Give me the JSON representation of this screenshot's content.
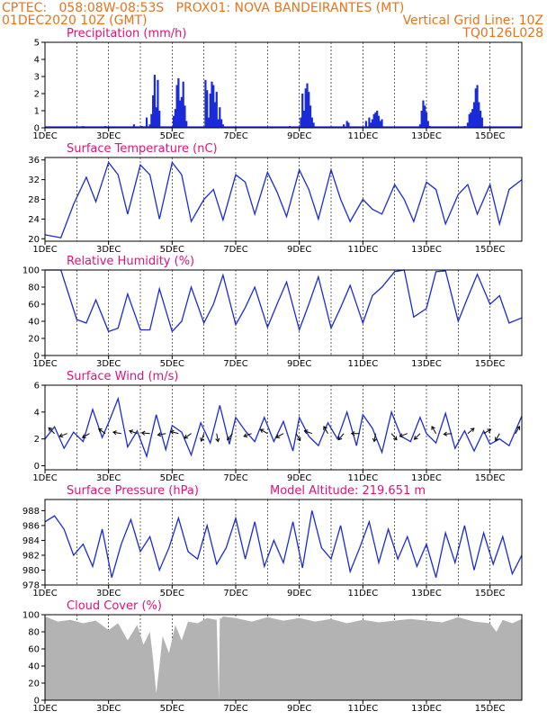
{
  "header": {
    "line1_left": "CPTEC:   058:08W-08:53S   PROX01: NOVA BANDEIRANTES (MT)",
    "line2_left": "01DEC2020 10Z (GMT)",
    "line2_right": "Vertical Grid Line: 10Z",
    "line3_right": "TQ0126L028"
  },
  "colors": {
    "header": "#e8731a",
    "title": "#e0127a",
    "series": "#1a2bd8",
    "cloud": "#b3b3b3",
    "axis": "#000000"
  },
  "x_ticks": [
    "1DEC",
    "3DEC",
    "5DEC",
    "7DEC",
    "9DEC",
    "11DEC",
    "13DEC",
    "15DEC"
  ],
  "x_range_days": [
    1,
    16
  ],
  "chart_data": [
    {
      "type": "bar",
      "title": "Precipitation (mm/h)",
      "ylim": [
        0,
        5
      ],
      "yticks": [
        0,
        1,
        2,
        3,
        4,
        5
      ],
      "x_day": [
        2.2,
        2.9,
        3.8,
        4.05,
        4.2,
        4.3,
        4.35,
        4.4,
        4.45,
        4.5,
        4.55,
        4.6,
        5.05,
        5.1,
        5.15,
        5.2,
        5.25,
        5.3,
        5.35,
        5.4,
        5.45,
        6.05,
        6.1,
        6.15,
        6.2,
        6.25,
        6.3,
        6.35,
        6.4,
        6.45,
        6.5,
        6.55,
        6.6,
        8.7,
        9.05,
        9.1,
        9.15,
        9.2,
        9.25,
        9.3,
        9.35,
        9.4,
        9.45,
        10.4,
        10.5,
        10.55,
        11.1,
        11.2,
        11.25,
        11.3,
        11.35,
        11.4,
        11.45,
        11.5,
        11.55,
        11.6,
        12.8,
        12.85,
        12.9,
        12.95,
        13.0,
        13.05,
        13.1,
        14.2,
        14.3,
        14.35,
        14.4,
        14.45,
        14.5,
        14.55,
        14.6,
        14.65,
        14.7,
        14.75
      ],
      "values": [
        0.1,
        0.1,
        0.2,
        0.1,
        0.6,
        0.2,
        0.8,
        1.9,
        3.1,
        1.2,
        2.8,
        1.0,
        0.7,
        1.1,
        2.5,
        2.9,
        1.6,
        1.8,
        2.7,
        1.3,
        0.4,
        2.8,
        2.2,
        0.6,
        2.0,
        2.7,
        2.5,
        1.5,
        2.1,
        0.5,
        1.2,
        0.5,
        0.2,
        0.1,
        0.6,
        2.0,
        1.0,
        2.3,
        2.6,
        2.1,
        1.3,
        0.6,
        0.3,
        0.2,
        0.4,
        0.3,
        0.4,
        0.6,
        0.3,
        0.5,
        0.8,
        0.9,
        1.0,
        0.7,
        0.4,
        0.5,
        0.2,
        1.0,
        1.6,
        1.3,
        0.9,
        0.4,
        0.1,
        0.1,
        0.3,
        0.8,
        0.9,
        1.1,
        1.5,
        2.3,
        2.5,
        1.5,
        1.0,
        0.6
      ]
    },
    {
      "type": "line",
      "title": "Surface Temperature (nC)",
      "ylim": [
        19.5,
        36.5
      ],
      "yticks": [
        20,
        24,
        28,
        32,
        36
      ],
      "x_day": [
        1.0,
        1.5,
        1.9,
        2.3,
        2.6,
        3.0,
        3.3,
        3.6,
        4.0,
        4.3,
        4.6,
        5.0,
        5.3,
        5.6,
        6.0,
        6.3,
        6.6,
        7.0,
        7.3,
        7.6,
        8.0,
        8.3,
        8.6,
        9.0,
        9.3,
        9.6,
        10.0,
        10.3,
        10.6,
        11.0,
        11.3,
        11.6,
        12.0,
        12.3,
        12.6,
        13.0,
        13.3,
        13.6,
        14.0,
        14.3,
        14.6,
        15.0,
        15.3,
        15.6,
        16.0
      ],
      "values": [
        20.8,
        20.2,
        27.0,
        32.5,
        27.5,
        35.5,
        33.0,
        25.0,
        35.0,
        33.0,
        24.0,
        35.5,
        33.0,
        23.5,
        28.0,
        30.0,
        23.8,
        33.0,
        31.5,
        25.0,
        33.5,
        29.5,
        24.5,
        34.0,
        30.0,
        24.0,
        34.0,
        28.0,
        23.5,
        28.0,
        26.0,
        25.0,
        31.0,
        28.0,
        23.5,
        31.5,
        30.0,
        23.0,
        29.0,
        31.0,
        25.0,
        31.0,
        23.0,
        30.0,
        32.0
      ]
    },
    {
      "type": "line",
      "title": "Relative Humidity (%)",
      "ylim": [
        0,
        100
      ],
      "yticks": [
        0,
        20,
        40,
        60,
        80,
        100
      ],
      "x_day": [
        1.0,
        1.5,
        2.0,
        2.3,
        2.6,
        3.0,
        3.3,
        3.6,
        4.0,
        4.3,
        4.6,
        5.0,
        5.3,
        5.6,
        6.0,
        6.3,
        6.6,
        7.0,
        7.3,
        7.6,
        8.0,
        8.3,
        8.6,
        9.0,
        9.3,
        9.6,
        10.0,
        10.3,
        10.6,
        11.0,
        11.3,
        11.6,
        12.0,
        12.3,
        12.6,
        13.0,
        13.3,
        13.6,
        14.0,
        14.3,
        14.6,
        15.0,
        15.3,
        15.6,
        16.0
      ],
      "values": [
        100,
        100,
        42,
        38,
        65,
        28,
        32,
        72,
        30,
        30,
        78,
        28,
        40,
        80,
        38,
        60,
        94,
        36,
        56,
        80,
        33,
        60,
        86,
        30,
        60,
        92,
        32,
        56,
        82,
        38,
        70,
        80,
        98,
        100,
        45,
        55,
        98,
        99,
        40,
        68,
        95,
        60,
        70,
        38,
        44
      ]
    },
    {
      "type": "line",
      "title": "Surface Wind (m/s)",
      "ylim": [
        -0.3,
        6
      ],
      "yticks": [
        0,
        2,
        4,
        6
      ],
      "x_day": [
        1.0,
        1.3,
        1.6,
        1.9,
        2.2,
        2.5,
        2.8,
        3.0,
        3.3,
        3.6,
        3.9,
        4.2,
        4.5,
        4.8,
        5.0,
        5.3,
        5.6,
        5.9,
        6.2,
        6.5,
        6.8,
        7.0,
        7.3,
        7.6,
        7.9,
        8.2,
        8.5,
        8.8,
        9.0,
        9.3,
        9.6,
        9.9,
        10.2,
        10.5,
        10.8,
        11.0,
        11.3,
        11.6,
        11.9,
        12.2,
        12.5,
        12.8,
        13.0,
        13.3,
        13.6,
        13.9,
        14.2,
        14.5,
        14.8,
        15.0,
        15.3,
        15.6,
        16.0
      ],
      "values": [
        2.0,
        2.9,
        1.3,
        2.5,
        1.8,
        4.2,
        2.1,
        3.2,
        5.0,
        1.4,
        2.6,
        0.7,
        3.8,
        1.2,
        3.0,
        2.5,
        0.8,
        3.2,
        1.7,
        4.5,
        1.6,
        3.6,
        2.6,
        1.8,
        3.6,
        1.8,
        3.3,
        1.1,
        3.6,
        2.2,
        1.5,
        3.2,
        2.0,
        4.0,
        1.5,
        3.8,
        2.8,
        1.0,
        4.0,
        2.2,
        1.8,
        3.6,
        2.4,
        1.7,
        3.9,
        1.3,
        2.6,
        1.1,
        2.6,
        1.6,
        2.0,
        1.5,
        3.7
      ],
      "arrows": {
        "x_day": [
          1.3,
          1.7,
          2.4,
          2.9,
          3.4,
          3.9,
          4.3,
          4.8,
          5.2,
          5.6,
          6.0,
          6.4,
          6.9,
          7.5,
          8.0,
          8.5,
          8.9,
          9.4,
          9.9,
          10.4,
          10.9,
          11.4,
          11.9,
          12.4,
          12.8,
          13.3,
          13.8,
          14.3,
          14.8,
          15.3,
          15.8
        ],
        "angle_deg": [
          135,
          200,
          210,
          145,
          170,
          160,
          175,
          190,
          165,
          215,
          250,
          280,
          230,
          200,
          150,
          210,
          300,
          160,
          120,
          230,
          180,
          260,
          310,
          200,
          225,
          120,
          185,
          40,
          30,
          240,
          60
        ]
      }
    },
    {
      "type": "line",
      "title": "Surface Pressure (hPa)",
      "annotation": "Model Altitude: 219.651 m",
      "ylim": [
        978,
        989.5
      ],
      "yticks": [
        978,
        980,
        982,
        984,
        986,
        988
      ],
      "x_day": [
        1.0,
        1.3,
        1.6,
        1.9,
        2.2,
        2.5,
        2.8,
        3.1,
        3.4,
        3.7,
        4.0,
        4.3,
        4.6,
        4.9,
        5.2,
        5.5,
        5.8,
        6.1,
        6.4,
        6.7,
        7.0,
        7.3,
        7.6,
        7.9,
        8.2,
        8.5,
        8.8,
        9.1,
        9.4,
        9.7,
        10.0,
        10.3,
        10.6,
        10.9,
        11.2,
        11.5,
        11.8,
        12.1,
        12.4,
        12.7,
        13.0,
        13.3,
        13.6,
        13.9,
        14.2,
        14.5,
        14.8,
        15.1,
        15.4,
        15.7,
        16.0
      ],
      "values": [
        986.5,
        987.3,
        985.5,
        982.0,
        983.5,
        980.5,
        985.5,
        979.0,
        983.5,
        986.8,
        982.5,
        984.5,
        980.0,
        983.0,
        987.0,
        982.5,
        981.5,
        986.0,
        980.8,
        983.0,
        987.0,
        981.5,
        986.5,
        980.5,
        984.0,
        981.0,
        986.5,
        980.3,
        988.0,
        983.0,
        981.5,
        986.0,
        979.8,
        983.0,
        986.5,
        981.0,
        985.5,
        981.5,
        984.5,
        980.5,
        983.5,
        979.0,
        985.0,
        981.0,
        986.0,
        980.0,
        985.0,
        980.8,
        984.5,
        979.5,
        982.0
      ]
    },
    {
      "type": "area",
      "title": "Cloud Cover (%)",
      "ylim": [
        0,
        100
      ],
      "yticks": [
        0,
        20,
        40,
        60,
        80,
        100
      ],
      "x_day": [
        1.0,
        1.4,
        1.8,
        2.2,
        2.6,
        3.0,
        3.3,
        3.6,
        3.9,
        4.1,
        4.3,
        4.4,
        4.5,
        4.6,
        4.7,
        4.9,
        5.1,
        5.3,
        5.5,
        5.8,
        6.1,
        6.4,
        6.47,
        6.5,
        6.53,
        6.6,
        7.0,
        7.5,
        8.0,
        8.5,
        9.0,
        9.5,
        10.0,
        10.5,
        11.0,
        11.5,
        12.0,
        12.5,
        13.0,
        13.5,
        14.0,
        14.5,
        15.0,
        15.2,
        15.4,
        15.7,
        16.0
      ],
      "values": [
        98,
        92,
        94,
        90,
        93,
        82,
        90,
        70,
        88,
        65,
        80,
        48,
        8,
        40,
        75,
        55,
        88,
        70,
        92,
        90,
        96,
        94,
        0,
        97,
        95,
        98,
        96,
        92,
        97,
        93,
        96,
        92,
        95,
        90,
        94,
        91,
        93,
        95,
        93,
        91,
        97,
        92,
        90,
        80,
        94,
        90,
        95
      ]
    }
  ]
}
